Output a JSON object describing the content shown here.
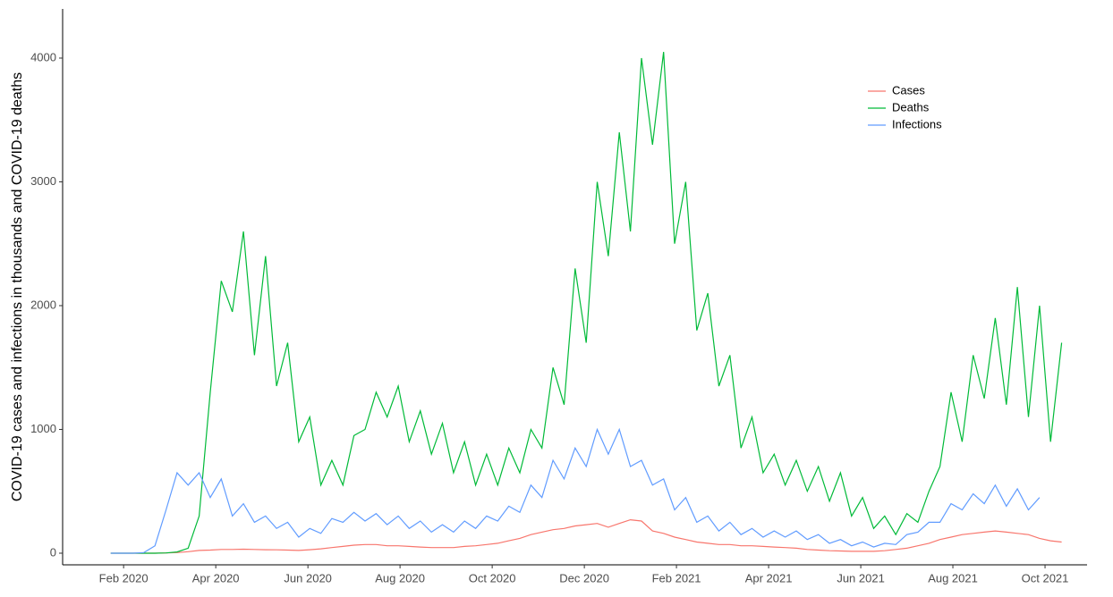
{
  "chart_data": {
    "type": "line",
    "y_label": "COVID-19 cases and infections in thousands and COVID-19 deaths",
    "x": [
      2020.06,
      2020.08,
      2020.1,
      2020.12,
      2020.14,
      2020.16,
      2020.18,
      2020.2,
      2020.22,
      2020.24,
      2020.26,
      2020.28,
      2020.3,
      2020.32,
      2020.34,
      2020.36,
      2020.38,
      2020.4,
      2020.42,
      2020.44,
      2020.46,
      2020.48,
      2020.5,
      2020.52,
      2020.54,
      2020.56,
      2020.58,
      2020.6,
      2020.62,
      2020.64,
      2020.66,
      2020.68,
      2020.7,
      2020.72,
      2020.74,
      2020.76,
      2020.78,
      2020.8,
      2020.82,
      2020.84,
      2020.86,
      2020.88,
      2020.9,
      2020.92,
      2020.94,
      2020.96,
      2020.98,
      2021.0,
      2021.02,
      2021.04,
      2021.06,
      2021.08,
      2021.1,
      2021.12,
      2021.14,
      2021.16,
      2021.18,
      2021.2,
      2021.22,
      2021.24,
      2021.26,
      2021.28,
      2021.3,
      2021.32,
      2021.34,
      2021.36,
      2021.38,
      2021.4,
      2021.42,
      2021.44,
      2021.46,
      2021.48,
      2021.5,
      2021.52,
      2021.54,
      2021.56,
      2021.58,
      2021.6,
      2021.62,
      2021.64,
      2021.66,
      2021.68,
      2021.7,
      2021.72,
      2021.74,
      2021.76,
      2021.78
    ],
    "series": [
      {
        "name": "Cases",
        "color": "#F8766D",
        "values": [
          0,
          0,
          0,
          0,
          0,
          2,
          5,
          12,
          22,
          25,
          30,
          30,
          32,
          30,
          28,
          27,
          25,
          22,
          28,
          35,
          45,
          55,
          65,
          70,
          70,
          60,
          60,
          55,
          50,
          45,
          45,
          45,
          55,
          60,
          70,
          80,
          100,
          120,
          150,
          170,
          190,
          200,
          220,
          230,
          240,
          210,
          240,
          270,
          260,
          180,
          160,
          130,
          110,
          90,
          80,
          70,
          70,
          60,
          60,
          55,
          50,
          45,
          40,
          30,
          25,
          20,
          18,
          15,
          15,
          15,
          20,
          30,
          40,
          60,
          80,
          110,
          130,
          150,
          160,
          170,
          180,
          170,
          160,
          150,
          120,
          100,
          90
        ]
      },
      {
        "name": "Deaths",
        "color": "#00BA38",
        "values": [
          0,
          0,
          0,
          0,
          0,
          2,
          10,
          40,
          300,
          1300,
          2200,
          1950,
          2600,
          1600,
          2400,
          1350,
          1700,
          900,
          1100,
          550,
          750,
          550,
          950,
          1000,
          1300,
          1100,
          1350,
          900,
          1150,
          800,
          1050,
          650,
          900,
          550,
          800,
          550,
          850,
          650,
          1000,
          850,
          1500,
          1200,
          2300,
          1700,
          3000,
          2400,
          3400,
          2600,
          4000,
          3300,
          4050,
          2500,
          3000,
          1800,
          2100,
          1350,
          1600,
          850,
          1100,
          650,
          800,
          550,
          750,
          500,
          700,
          420,
          650,
          300,
          450,
          200,
          300,
          150,
          320,
          250,
          500,
          700,
          1300,
          900,
          1600,
          1250,
          1900,
          1200,
          2150,
          1100,
          2000,
          900,
          1700
        ]
      },
      {
        "name": "Infections",
        "color": "#619CFF",
        "values": [
          0,
          0,
          0,
          5,
          60,
          350,
          650,
          550,
          650,
          450,
          600,
          300,
          400,
          250,
          300,
          200,
          250,
          130,
          200,
          160,
          280,
          250,
          330,
          260,
          320,
          230,
          300,
          200,
          260,
          170,
          230,
          170,
          260,
          200,
          300,
          260,
          380,
          330,
          550,
          450,
          750,
          600,
          850,
          700,
          1000,
          800,
          1000,
          700,
          750,
          550,
          600,
          350,
          450,
          250,
          300,
          180,
          250,
          150,
          200,
          130,
          180,
          130,
          180,
          110,
          150,
          80,
          110,
          60,
          90,
          50,
          80,
          70,
          150,
          170,
          250,
          250,
          400,
          350,
          480,
          400,
          550,
          380,
          520,
          350,
          450,
          null,
          null
        ]
      }
    ],
    "xlim": [
      2019.973,
      2021.826
    ],
    "xticks": [
      {
        "value": 2020.0833,
        "label": "Feb 2020"
      },
      {
        "value": 2020.25,
        "label": "Apr 2020"
      },
      {
        "value": 2020.4167,
        "label": "Jun 2020"
      },
      {
        "value": 2020.5833,
        "label": "Aug 2020"
      },
      {
        "value": 2020.75,
        "label": "Oct 2020"
      },
      {
        "value": 2020.9167,
        "label": "Dec 2020"
      },
      {
        "value": 2021.0833,
        "label": "Feb 2021"
      },
      {
        "value": 2021.25,
        "label": "Apr 2021"
      },
      {
        "value": 2021.4167,
        "label": "Jun 2021"
      },
      {
        "value": 2021.5833,
        "label": "Aug 2021"
      },
      {
        "value": 2021.75,
        "label": "Oct 2021"
      }
    ],
    "ylim": [
      -94,
      4397
    ],
    "yticks": [
      0,
      1000,
      2000,
      3000,
      4000
    ],
    "grid": false,
    "legend": "upper right"
  }
}
